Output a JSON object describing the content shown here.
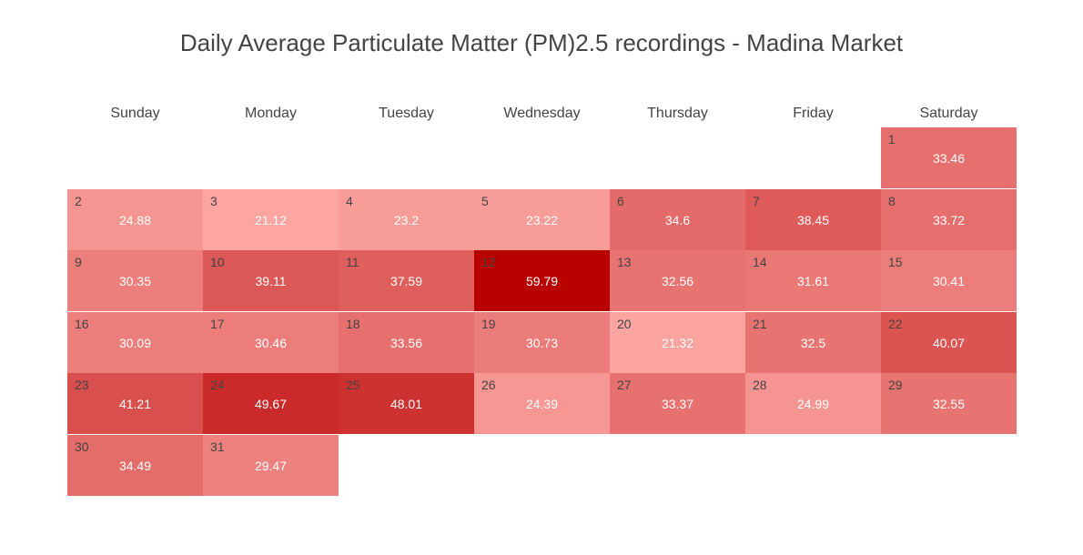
{
  "chart_data": {
    "type": "heatmap",
    "title": "Daily Average Particulate Matter (PM)2.5 recordings - Madina Market",
    "weekdays": [
      "Sunday",
      "Monday",
      "Tuesday",
      "Wednesday",
      "Thursday",
      "Friday",
      "Saturday"
    ],
    "first_weekday_index": 6,
    "days": [
      1,
      2,
      3,
      4,
      5,
      6,
      7,
      8,
      9,
      10,
      11,
      12,
      13,
      14,
      15,
      16,
      17,
      18,
      19,
      20,
      21,
      22,
      23,
      24,
      25,
      26,
      27,
      28,
      29,
      30,
      31
    ],
    "values": [
      33.46,
      24.88,
      21.12,
      23.2,
      23.22,
      34.6,
      38.45,
      33.72,
      30.35,
      39.11,
      37.59,
      59.79,
      32.56,
      31.61,
      30.41,
      30.09,
      30.46,
      33.56,
      30.73,
      21.32,
      32.5,
      40.07,
      41.21,
      49.67,
      48.01,
      24.39,
      33.37,
      24.99,
      32.55,
      34.49,
      29.47
    ],
    "colorscale": {
      "low": "#fca5a1",
      "high": "#b80000"
    }
  }
}
